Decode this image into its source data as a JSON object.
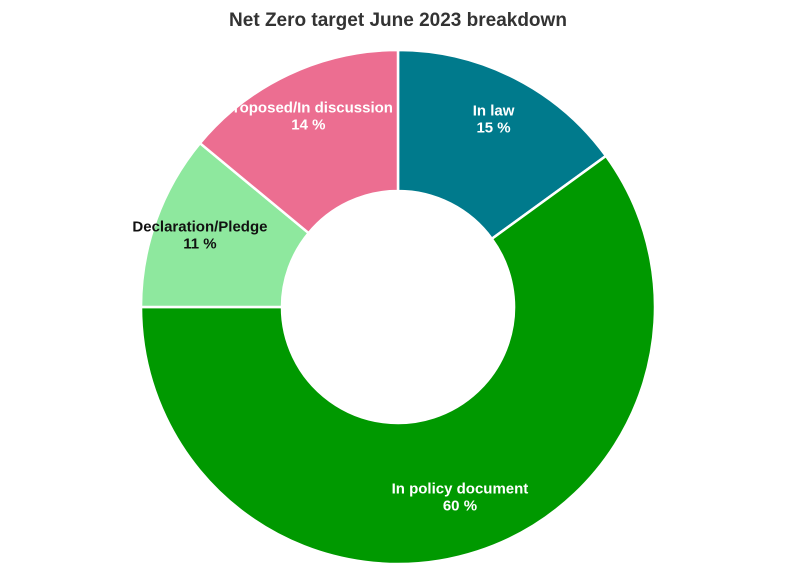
{
  "chart_data": {
    "type": "pie",
    "title": "Net Zero target June 2023 breakdown",
    "donut": true,
    "slices": [
      {
        "label": "In law",
        "value": 15,
        "value_label": "15 %",
        "color": "#007A8C",
        "text_color": "#ffffff"
      },
      {
        "label": "In policy document",
        "value": 60,
        "value_label": "60 %",
        "color": "#009900",
        "text_color": "#ffffff"
      },
      {
        "label": "Declaration/Pledge",
        "value": 11,
        "value_label": "11 %",
        "color": "#8EE89E",
        "text_color": "#111111"
      },
      {
        "label": "Proposed/In discussion",
        "value": 14,
        "value_label": "14 %",
        "color": "#EC6E91",
        "text_color": "#ffffff"
      }
    ]
  }
}
